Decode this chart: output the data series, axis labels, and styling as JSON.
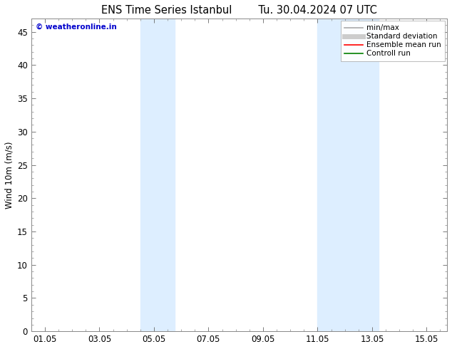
{
  "title": "ENS Time Series Istanbul",
  "title2": "Tu. 30.04.2024 07 UTC",
  "ylabel": "Wind 10m (m/s)",
  "watermark": "© weatheronline.in",
  "watermark_color": "#0000cc",
  "background_color": "#ffffff",
  "plot_bg_color": "#ffffff",
  "shaded_bands": [
    {
      "xmin": 4.5,
      "xmax": 5.75,
      "color": "#ddeeff"
    },
    {
      "xmin": 11.0,
      "xmax": 13.25,
      "color": "#ddeeff"
    }
  ],
  "xlim": [
    0.5,
    15.75
  ],
  "ylim": [
    0,
    47
  ],
  "yticks": [
    0,
    5,
    10,
    15,
    20,
    25,
    30,
    35,
    40,
    45
  ],
  "xtick_labels": [
    "01.05",
    "03.05",
    "05.05",
    "07.05",
    "09.05",
    "11.05",
    "13.05",
    "15.05"
  ],
  "xtick_positions": [
    1,
    3,
    5,
    7,
    9,
    11,
    13,
    15
  ],
  "legend_items": [
    {
      "label": "min/max",
      "color": "#aaaaaa",
      "lw": 1.2,
      "linestyle": "-"
    },
    {
      "label": "Standard deviation",
      "color": "#cccccc",
      "lw": 5,
      "linestyle": "-"
    },
    {
      "label": "Ensemble mean run",
      "color": "#ff0000",
      "lw": 1.2,
      "linestyle": "-"
    },
    {
      "label": "Controll run",
      "color": "#008000",
      "lw": 1.2,
      "linestyle": "-"
    }
  ],
  "title_fontsize": 10.5,
  "tick_fontsize": 8.5,
  "legend_fontsize": 7.5,
  "ylabel_fontsize": 8.5
}
